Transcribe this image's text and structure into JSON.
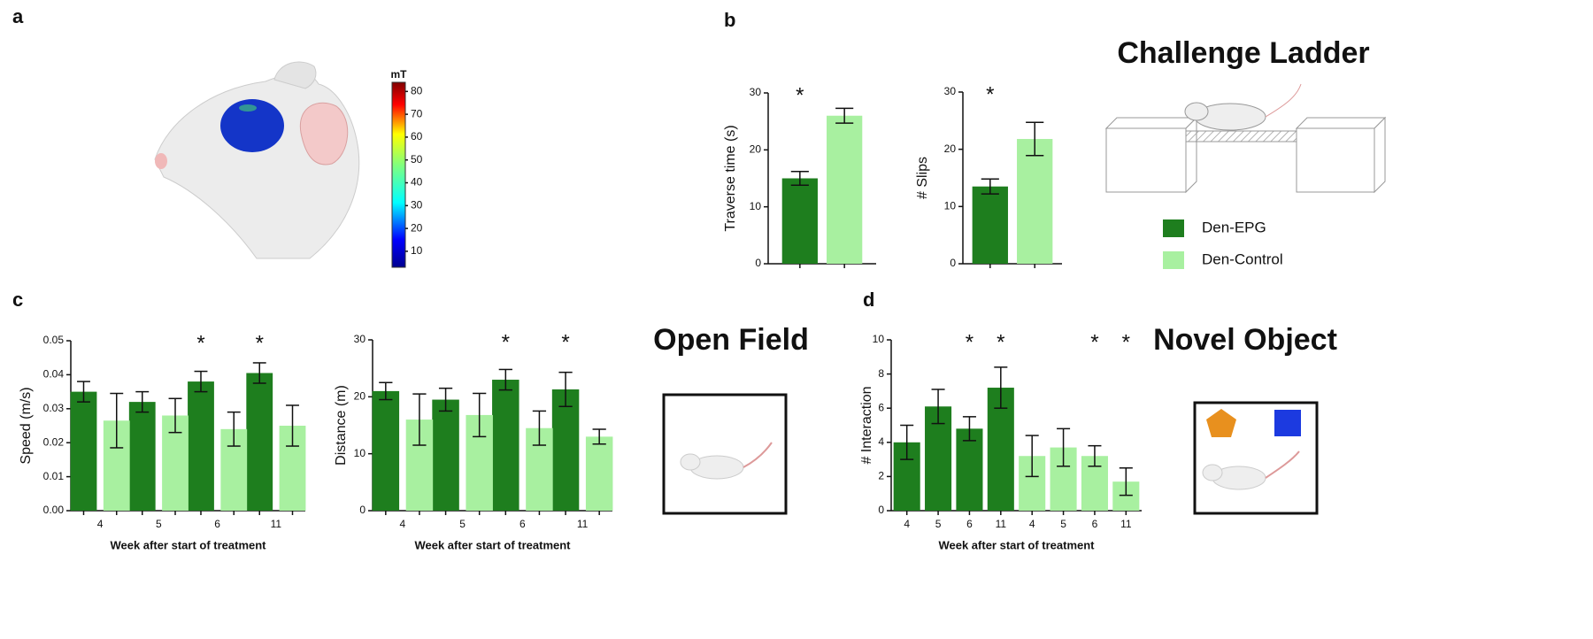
{
  "panel_labels": [
    "a",
    "b",
    "c",
    "d"
  ],
  "titles": [
    "Challenge Ladder",
    "Open Field",
    "Novel Object"
  ],
  "chart_data": [
    {
      "type": "colorbar",
      "title": "mT",
      "ylim": [
        3,
        84
      ],
      "yticks": [
        10,
        20,
        30,
        40,
        50,
        60,
        70,
        80
      ]
    },
    {
      "type": "bar",
      "ylabel": "Traverse time (s)",
      "categories": [
        null
      ],
      "grouped": true,
      "ylim": [
        0,
        30
      ],
      "yticks": [
        0,
        10,
        20,
        30
      ],
      "series": [
        {
          "name": "Den-EPG",
          "color": "#1e7e1e",
          "values": [
            15
          ],
          "errors": [
            1.2
          ]
        },
        {
          "name": "Den-Control",
          "color": "#a8f0a0",
          "values": [
            26
          ],
          "errors": [
            1.3
          ]
        }
      ],
      "annotations": [
        {
          "text": "*",
          "category": 0
        }
      ]
    },
    {
      "type": "bar",
      "ylabel": "# Slips",
      "categories": [
        null
      ],
      "grouped": true,
      "ylim": [
        0,
        30
      ],
      "yticks": [
        0,
        10,
        20,
        30
      ],
      "series": [
        {
          "color": "#1e7e1e",
          "values": [
            13.5
          ],
          "errors": [
            1.3
          ]
        },
        {
          "color": "#a8f0a0",
          "values": [
            21.8
          ],
          "errors": [
            2.9
          ]
        }
      ],
      "annotations": [
        {
          "text": "*",
          "category": 0
        }
      ]
    },
    {
      "type": "bar",
      "ylabel": "Speed (m/s)",
      "xlabel": "Week after start of treatment",
      "categories": [
        "4",
        "5",
        "6",
        "11"
      ],
      "grouped": true,
      "ylim": [
        0,
        0.05
      ],
      "yticks": [
        {
          "value": 0,
          "label": "0.00"
        },
        0.01,
        0.02,
        0.03,
        0.04,
        0.05
      ],
      "series": [
        {
          "color": "#1e7e1e",
          "values": [
            0.035,
            0.032,
            0.038,
            0.0405
          ],
          "errors": [
            0.003,
            0.003,
            0.003,
            0.003
          ]
        },
        {
          "color": "#a8f0a0",
          "values": [
            0.0265,
            0.028,
            0.024,
            0.025
          ],
          "errors": [
            0.008,
            0.005,
            0.005,
            0.006
          ]
        }
      ],
      "annotations": [
        {
          "text": "*",
          "category": 2
        },
        {
          "text": "*",
          "category": 3
        }
      ]
    },
    {
      "type": "bar",
      "ylabel": "Distance (m)",
      "xlabel": "Week after start of treatment",
      "categories": [
        "4",
        "5",
        "6",
        "11"
      ],
      "grouped": true,
      "ylim": [
        0,
        30
      ],
      "yticks": [
        0,
        10,
        20,
        30
      ],
      "series": [
        {
          "color": "#1e7e1e",
          "values": [
            21,
            19.5,
            23,
            21.3
          ],
          "errors": [
            1.5,
            2,
            1.8,
            3
          ]
        },
        {
          "color": "#a8f0a0",
          "values": [
            16,
            16.8,
            14.5,
            13
          ],
          "errors": [
            4.5,
            3.8,
            3,
            1.3
          ]
        }
      ],
      "annotations": [
        {
          "text": "*",
          "category": 2
        },
        {
          "text": "*",
          "category": 3
        }
      ]
    },
    {
      "type": "bar",
      "ylabel": "# Interaction",
      "xlabel": "Week after start of treatment",
      "categories": [
        "4",
        "5",
        "6",
        "11",
        "4",
        "5",
        "6",
        "11"
      ],
      "grouped": false,
      "ylim": [
        0,
        10
      ],
      "yticks": [
        0,
        2,
        4,
        6,
        8,
        10
      ],
      "series": [
        {
          "color": "#1e7e1e",
          "values": [
            4,
            6.1,
            4.8,
            7.2,
            null,
            null,
            null,
            null
          ],
          "errors": [
            1,
            1,
            0.7,
            1.2,
            null,
            null,
            null,
            null
          ]
        },
        {
          "color": "#a8f0a0",
          "values": [
            null,
            null,
            null,
            null,
            3.2,
            3.7,
            3.2,
            1.7
          ],
          "errors": [
            null,
            null,
            null,
            null,
            1.2,
            1.1,
            0.6,
            0.8
          ]
        }
      ],
      "annotations": [
        {
          "text": "*",
          "category": 2
        },
        {
          "text": "*",
          "category": 3
        },
        {
          "text": "*",
          "category": 6
        },
        {
          "text": "*",
          "category": 7
        }
      ]
    }
  ]
}
